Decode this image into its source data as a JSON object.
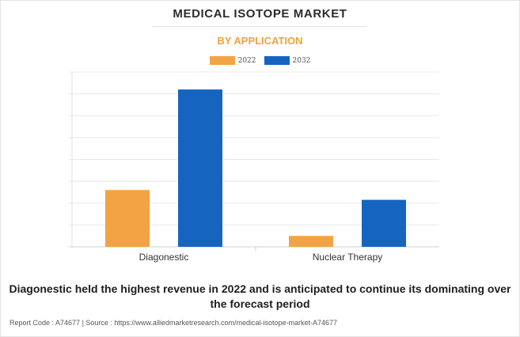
{
  "header": {
    "title": "MEDICAL ISOTOPE MARKET",
    "subtitle": "BY APPLICATION"
  },
  "legend": [
    {
      "label": "2022",
      "color": "#f2a444"
    },
    {
      "label": "2032",
      "color": "#1565c0"
    }
  ],
  "chart_data": {
    "type": "bar",
    "categories": [
      "Diagonestic",
      "Nuclear Therapy"
    ],
    "series": [
      {
        "name": "2022",
        "color": "#f2a444",
        "values": [
          26,
          5
        ]
      },
      {
        "name": "2032",
        "color": "#1565c0",
        "values": [
          72,
          21.5
        ]
      }
    ],
    "ylim": [
      0,
      80
    ],
    "grid": true,
    "legend_position": "top"
  },
  "caption": "Diagonestic held the highest revenue in 2022 and is anticipated to continue its dominating over the forecast period",
  "footer": "Report Code : A74677  |  Source : https://www.alliedmarketresearch.com/medical-isotope-market-A74677"
}
